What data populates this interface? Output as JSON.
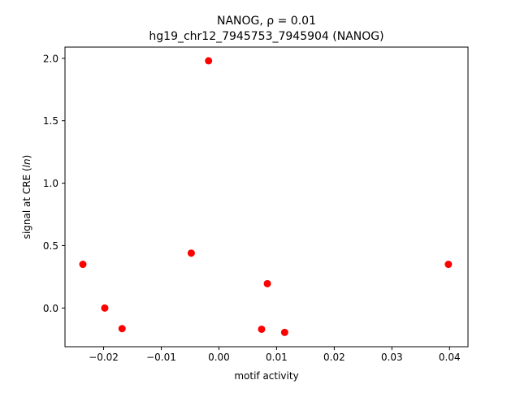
{
  "chart_data": {
    "type": "scatter",
    "title_line1": "NANOG, ρ = 0.01",
    "title_line2": "hg19_chr12_7945753_7945904 (NANOG)",
    "xlabel": "motif activity",
    "ylabel_prefix": "signal at CRE (",
    "ylabel_italic": "ln",
    "ylabel_suffix": ")",
    "xlim": [
      -0.0267,
      0.0432
    ],
    "ylim": [
      -0.31,
      2.09
    ],
    "x_ticks": [
      -0.02,
      -0.01,
      0.0,
      0.01,
      0.02,
      0.03,
      0.04
    ],
    "x_tick_labels": [
      "−0.02",
      "−0.01",
      "0.00",
      "0.01",
      "0.02",
      "0.03",
      "0.04"
    ],
    "y_ticks": [
      0.0,
      0.5,
      1.0,
      1.5,
      2.0
    ],
    "y_tick_labels": [
      "0.0",
      "0.5",
      "1.0",
      "1.5",
      "2.0"
    ],
    "grid": false,
    "marker_color": "#ff0000",
    "points": [
      {
        "x": -0.0236,
        "y": 0.35
      },
      {
        "x": -0.0198,
        "y": 0.0
      },
      {
        "x": -0.0168,
        "y": -0.165
      },
      {
        "x": -0.0048,
        "y": 0.44
      },
      {
        "x": -0.0018,
        "y": 1.98
      },
      {
        "x": 0.0074,
        "y": -0.17
      },
      {
        "x": 0.0084,
        "y": 0.195
      },
      {
        "x": 0.0114,
        "y": -0.195
      },
      {
        "x": 0.0398,
        "y": 0.35
      }
    ]
  }
}
